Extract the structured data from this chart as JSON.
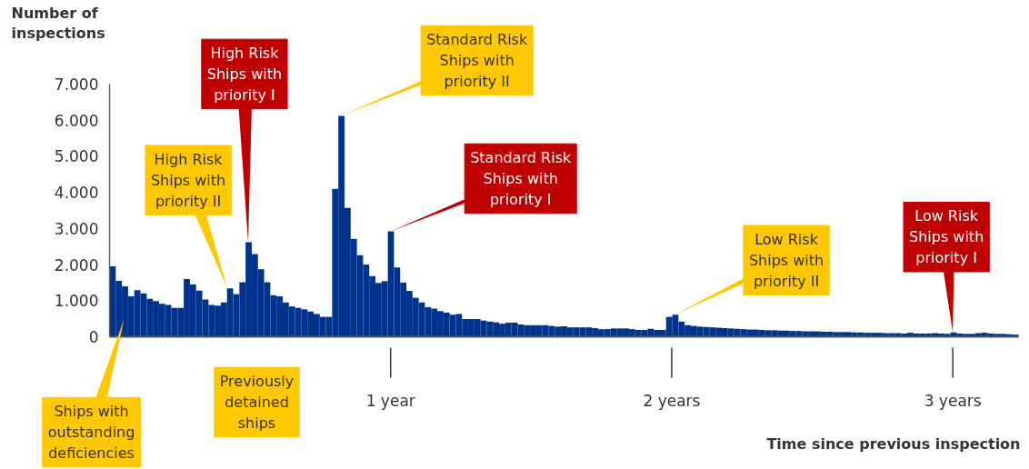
{
  "chart_data": {
    "type": "histogram",
    "ylabel": "Number of\ninspections",
    "xlabel": "Time since previous inspection",
    "color": "#00338d",
    "bins": [
      0,
      0.022,
      0.044,
      0.066,
      0.088,
      0.11,
      0.132,
      0.154,
      0.176,
      0.198,
      0.22,
      0.242,
      0.264,
      0.286,
      0.308,
      0.33,
      0.352,
      0.374,
      0.396,
      0.418,
      0.44,
      0.462,
      0.484,
      0.506,
      0.528,
      0.55,
      0.572,
      0.594,
      0.616,
      0.638,
      0.66,
      0.682,
      0.704,
      0.726,
      0.748,
      0.77,
      0.792,
      0.814,
      0.836,
      0.858,
      0.88,
      0.902,
      0.924,
      0.946,
      0.968,
      0.99,
      1.012,
      1.034,
      1.056,
      1.078,
      1.1,
      1.122,
      1.144,
      1.166,
      1.188,
      1.21,
      1.232,
      1.254,
      1.276,
      1.298,
      1.32,
      1.342,
      1.364,
      1.386,
      1.408,
      1.43,
      1.452,
      1.474,
      1.496,
      1.518,
      1.54,
      1.562,
      1.584,
      1.606,
      1.628,
      1.65,
      1.672,
      1.694,
      1.716,
      1.738,
      1.76,
      1.782,
      1.804,
      1.826,
      1.848,
      1.87,
      1.892,
      1.914,
      1.936,
      1.958,
      1.98,
      2.002,
      2.024,
      2.046,
      2.068,
      2.09,
      2.112,
      2.134,
      2.156,
      2.178,
      2.2,
      2.222,
      2.244,
      2.266,
      2.288,
      2.31,
      2.332,
      2.354,
      2.376,
      2.398,
      2.42,
      2.442,
      2.464,
      2.486,
      2.508,
      2.53,
      2.552,
      2.574,
      2.596,
      2.618,
      2.64,
      2.662,
      2.684,
      2.706,
      2.728,
      2.75,
      2.772,
      2.794,
      2.816,
      2.838,
      2.86,
      2.882,
      2.904,
      2.926,
      2.948,
      2.97,
      2.992,
      3.014,
      3.036,
      3.058,
      3.08,
      3.102,
      3.124,
      3.146,
      3.168,
      3.19,
      3.212,
      3.234
    ],
    "values": [
      1950,
      1550,
      1400,
      1120,
      1290,
      1200,
      1050,
      990,
      910,
      880,
      800,
      800,
      1600,
      1450,
      1280,
      1030,
      880,
      860,
      950,
      1340,
      1180,
      1510,
      2620,
      2290,
      1870,
      1510,
      1150,
      1120,
      950,
      840,
      800,
      760,
      700,
      630,
      550,
      550,
      4100,
      6120,
      3570,
      2710,
      2260,
      2000,
      1680,
      1490,
      1540,
      2920,
      1920,
      1500,
      1270,
      1080,
      950,
      820,
      780,
      710,
      670,
      610,
      630,
      490,
      490,
      490,
      450,
      420,
      400,
      360,
      390,
      390,
      340,
      320,
      320,
      320,
      320,
      300,
      280,
      290,
      260,
      260,
      260,
      260,
      240,
      210,
      210,
      230,
      230,
      230,
      210,
      190,
      190,
      220,
      190,
      190,
      550,
      610,
      420,
      320,
      300,
      280,
      270,
      260,
      250,
      240,
      230,
      220,
      210,
      200,
      200,
      190,
      180,
      180,
      170,
      170,
      160,
      160,
      150,
      150,
      150,
      140,
      140,
      130,
      130,
      130,
      120,
      120,
      110,
      110,
      110,
      100,
      100,
      100,
      90,
      110,
      90,
      90,
      90,
      100,
      90,
      80,
      120,
      90,
      80,
      80,
      100,
      110,
      90,
      80,
      80,
      70,
      60
    ],
    "xlim": [
      0,
      3.234
    ],
    "ylim": [
      0,
      7000
    ],
    "xticks": [
      {
        "value": 1,
        "label": "1 year"
      },
      {
        "value": 2,
        "label": "2 years"
      },
      {
        "value": 3,
        "label": "3 years"
      }
    ],
    "yticks": [
      0,
      {
        "value": 1000,
        "label": "1.000"
      },
      {
        "value": 2000,
        "label": "2.000"
      },
      {
        "value": 3000,
        "label": "3.000"
      },
      {
        "value": 4000,
        "label": "4.000"
      },
      {
        "value": 5000,
        "label": "5.000"
      },
      {
        "value": 6000,
        "label": "6.000"
      },
      {
        "value": 7000,
        "label": "7.000"
      }
    ],
    "annotations": [
      {
        "text": "Ships with\noutstanding\ndeficiencies",
        "x": 0.052,
        "y": 500
      },
      "Previously\ndetained\nships",
      {
        "text": "High Risk\nShips with\npriority II",
        "x": 0.419,
        "y": 1340
      },
      {
        "text": "High Risk\nShips with\npriority I",
        "x": 0.493,
        "y": 2620
      },
      {
        "text": "Standard Risk\nShips with\npriority II",
        "x": 0.822,
        "y": 6120
      },
      {
        "text": "Standard Risk\nShips with\npriority I",
        "x": 1.0,
        "y": 2920
      },
      {
        "text": "Low Risk\nShips with\npriority II",
        "x": 2.01,
        "y": 610
      },
      {
        "text": "Low Risk\nShips with\npriority I",
        "x": 3.0,
        "y": 120
      }
    ]
  }
}
